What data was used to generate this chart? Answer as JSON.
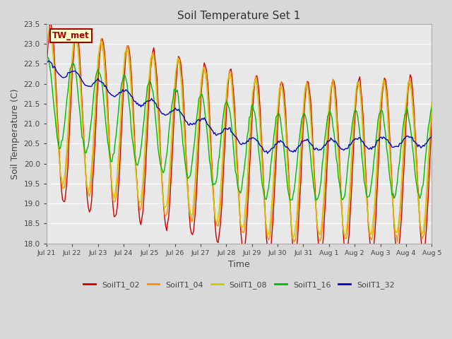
{
  "title": "Soil Temperature Set 1",
  "xlabel": "Time",
  "ylabel": "Soil Temperature (C)",
  "ylim": [
    18.0,
    23.5
  ],
  "yticks": [
    18.0,
    18.5,
    19.0,
    19.5,
    20.0,
    20.5,
    21.0,
    21.5,
    22.0,
    22.5,
    23.0,
    23.5
  ],
  "series": [
    {
      "label": "SoilT1_02",
      "color": "#cc0000"
    },
    {
      "label": "SoilT1_04",
      "color": "#ff8c00"
    },
    {
      "label": "SoilT1_08",
      "color": "#cccc00"
    },
    {
      "label": "SoilT1_16",
      "color": "#00bb00"
    },
    {
      "label": "SoilT1_32",
      "color": "#0000cc"
    }
  ],
  "annotation_label": "TW_met",
  "annotation_bg": "#ffffcc",
  "annotation_border": "#aa0000",
  "fig_bg": "#d8d8d8",
  "plot_bg": "#e8e8e8",
  "grid_color": "#ffffff",
  "tick_label_color": "#444444",
  "axis_label_color": "#444444",
  "title_color": "#333333",
  "legend_text_color": "#444444",
  "n_points": 360,
  "figsize": [
    6.4,
    4.8
  ],
  "dpi": 100
}
